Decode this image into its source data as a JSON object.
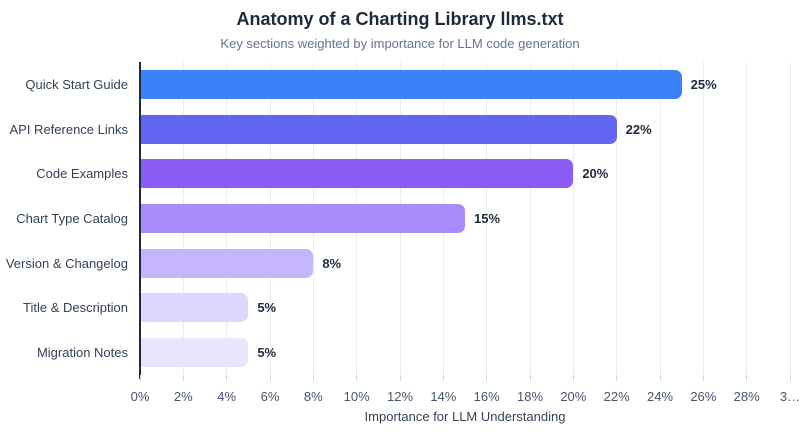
{
  "chart_data": {
    "type": "bar",
    "orientation": "horizontal",
    "title": "Anatomy of a Charting Library llms.txt",
    "subtitle": "Key sections weighted by importance for LLM code generation",
    "xlabel": "Importance for LLM Understanding",
    "ylabel": "",
    "categories": [
      "Quick Start Guide",
      "API Reference Links",
      "Code Examples",
      "Chart Type Catalog",
      "Version & Changelog",
      "Title & Description",
      "Migration Notes"
    ],
    "values": [
      25,
      22,
      20,
      15,
      8,
      5,
      5
    ],
    "value_labels": [
      "25%",
      "22%",
      "20%",
      "15%",
      "8%",
      "5%",
      "5%"
    ],
    "bar_colors": [
      "#3b82f6",
      "#6366f1",
      "#8b5cf6",
      "#a78bfa",
      "#c4b5fd",
      "#ddd6fe",
      "#e9e5fc"
    ],
    "xlim": [
      0,
      30
    ],
    "x_tick_step": 2,
    "x_tick_labels": [
      "0%",
      "2%",
      "4%",
      "6%",
      "8%",
      "10%",
      "12%",
      "14%",
      "16%",
      "18%",
      "20%",
      "22%",
      "24%",
      "26%",
      "28%",
      "3…"
    ],
    "grid": true,
    "legend": "none",
    "colors": {
      "title": "#1e293b",
      "subtitle": "#64748b",
      "axis_line": "#1f2937",
      "grid_line": "#e9edf3",
      "tick_label": "#475569",
      "category_label": "#334155",
      "value_label": "#1e293b",
      "background": "#ffffff"
    }
  }
}
